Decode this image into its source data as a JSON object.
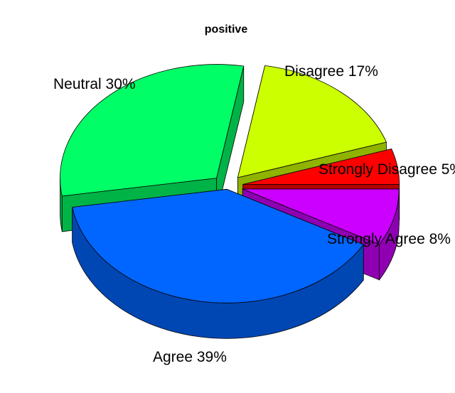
{
  "chart_data": {
    "type": "pie",
    "style": "3d-exploded",
    "title": "positive",
    "slices": [
      {
        "label": "Strongly Disagree",
        "display": "Strongly Disagree 5%",
        "value": 5,
        "color": "#ff0000",
        "side": "#b30000"
      },
      {
        "label": "Disagree",
        "display": "Disagree 17%",
        "value": 17,
        "color": "#ccff00",
        "side": "#8fb300"
      },
      {
        "label": "Neutral",
        "display": "Neutral 30%",
        "value": 30,
        "color": "#00ff66",
        "side": "#00b347"
      },
      {
        "label": "Agree",
        "display": "Agree 39%",
        "value": 39,
        "color": "#0066ff",
        "side": "#0047b3"
      },
      {
        "label": "Strongly Agree",
        "display": "Strongly Agree 8%",
        "value": 8,
        "color": "#cc00ff",
        "side": "#8f00b3"
      }
    ]
  }
}
